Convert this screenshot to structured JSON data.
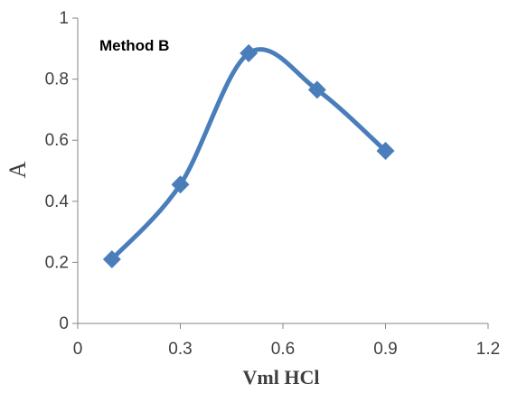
{
  "chart_data": {
    "type": "line",
    "annotation": "Method B",
    "xlabel": "Vml HCl",
    "ylabel": "A",
    "xlim": [
      0,
      1.2
    ],
    "ylim": [
      0,
      1
    ],
    "x_ticks": [
      "0",
      "0.3",
      "0.6",
      "0.9",
      "1.2"
    ],
    "y_ticks": [
      "0",
      "0.2",
      "0.4",
      "0.6",
      "0.8",
      "1"
    ],
    "grid": false,
    "smoothed": true,
    "marker": "diamond",
    "series": [
      {
        "x": [
          0.1,
          0.3,
          0.5,
          0.7,
          0.9
        ],
        "y": [
          0.21,
          0.455,
          0.885,
          0.765,
          0.565
        ]
      }
    ],
    "colors": {
      "series": "#4a7ebb",
      "axis": "#868686"
    }
  }
}
